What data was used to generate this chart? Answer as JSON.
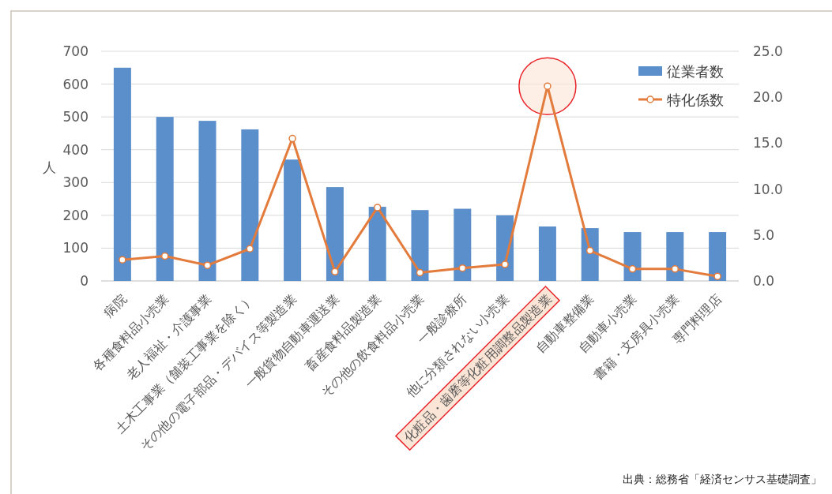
{
  "chart_data": {
    "type": "bar",
    "categories": [
      "病院",
      "各種食料品小売業",
      "老人福祉・介護事業",
      "土木工事業（舗装工事業を除く）",
      "その他の電子部品・デバイス等製造業",
      "一般貨物自動車運送業",
      "畜産食料品製造業",
      "その他の飲食料品小売業",
      "一般診療所",
      "他に分類されない小売業",
      "化粧品・歯磨等化粧用調整品製造業",
      "自動車整備業",
      "自動車小売業",
      "書籍・文房具小売業",
      "専門料理店"
    ],
    "series": [
      {
        "name": "従業者数",
        "color": "#5b8fcb",
        "values": [
          650,
          500,
          488,
          462,
          370,
          286,
          226,
          216,
          220,
          200,
          166,
          161,
          149,
          149,
          149
        ]
      },
      {
        "name": "特化係数",
        "type": "line",
        "axis": "y2",
        "color": "#e27b3c",
        "marker": "circle",
        "values": [
          2.3,
          2.7,
          1.7,
          3.5,
          15.5,
          1.0,
          8.0,
          0.9,
          1.4,
          1.8,
          21.2,
          3.3,
          1.3,
          1.3,
          0.5
        ]
      }
    ],
    "ylabel": "人",
    "ylim": [
      0,
      700
    ],
    "yticks": [
      0,
      100,
      200,
      300,
      400,
      500,
      600,
      700
    ],
    "y2lim": [
      0,
      25
    ],
    "y2ticks": [
      {
        "value": 0,
        "label": "0.0"
      },
      {
        "value": 5,
        "label": "5.0"
      },
      {
        "value": 10,
        "label": "10.0"
      },
      {
        "value": 15,
        "label": "15.0"
      },
      {
        "value": 20,
        "label": "20.0"
      },
      {
        "value": 25,
        "label": "25.0"
      }
    ],
    "grid": "y",
    "legend": "top right",
    "annotations": [
      "出典：総務省「経済センサス基礎調査」"
    ]
  }
}
